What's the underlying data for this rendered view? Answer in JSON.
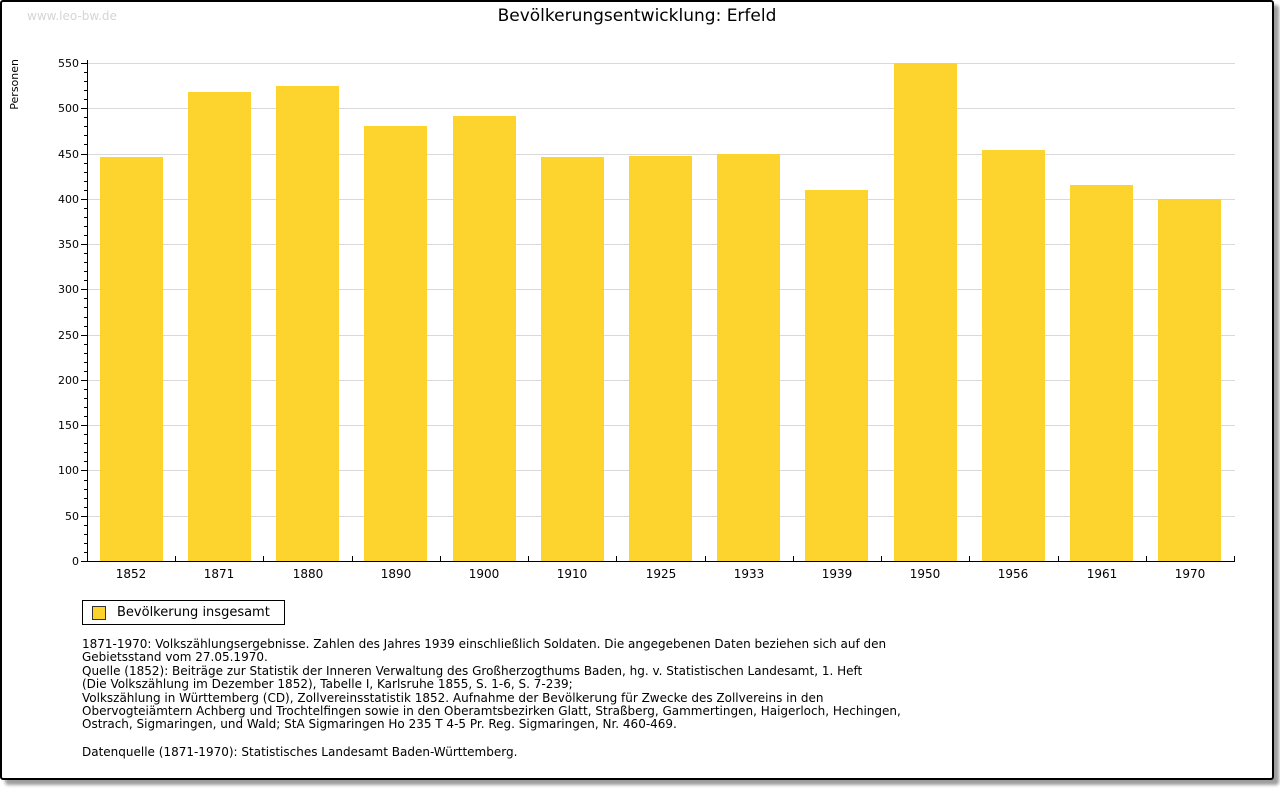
{
  "watermark": "www.leo-bw.de",
  "title": "Bevölkerungsentwicklung: Erfeld",
  "chart_data": {
    "type": "bar",
    "title": "Bevölkerungsentwicklung: Erfeld",
    "categories": [
      "1852",
      "1871",
      "1880",
      "1890",
      "1900",
      "1910",
      "1925",
      "1933",
      "1939",
      "1950",
      "1956",
      "1961",
      "1970"
    ],
    "values": [
      446,
      518,
      525,
      480,
      491,
      446,
      447,
      450,
      410,
      550,
      454,
      415,
      400
    ],
    "series_name": "Bevölkerung insgesamt",
    "xlabel": "",
    "ylabel": "Personen",
    "ylim": [
      0,
      550
    ],
    "y_tick_step": 50,
    "y_minor_tick_step": 10,
    "grid": "horizontal",
    "legend_position": "bottom-left",
    "bar_color": "#fcd42d"
  },
  "legend": {
    "label": "Bevölkerung insgesamt",
    "swatch_color": "#fcd42d"
  },
  "colors": {
    "bar": "#fcd42d",
    "grid": "#d9d9d9",
    "axis": "#000000",
    "watermark": "#d5d5d5"
  },
  "footnotes": {
    "lines": [
      "1871-1970: Volkszählungsergebnisse. Zahlen des Jahres 1939 einschließlich Soldaten. Die angegebenen Daten beziehen sich auf den",
      "Gebietsstand vom 27.05.1970.",
      "Quelle (1852): Beiträge zur Statistik der Inneren Verwaltung des Großherzogthums Baden, hg. v. Statistischen Landesamt, 1. Heft",
      "(Die Volkszählung im Dezember 1852), Tabelle I, Karlsruhe 1855, S. 1-6, S. 7-239;",
      "Volkszählung in Württemberg (CD), Zollvereinsstatistik 1852. Aufnahme der Bevölkerung für Zwecke des Zollvereins in den",
      "Obervogteiämtern Achberg und Trochtelfingen sowie in den Oberamtsbezirken Glatt, Straßberg, Gammertingen, Haigerloch, Hechingen,",
      "Ostrach, Sigmaringen, und Wald; StA Sigmaringen Ho 235 T 4-5 Pr. Reg. Sigmaringen, Nr. 460-469."
    ],
    "datasource": "Datenquelle (1871-1970): Statistisches Landesamt Baden-Württemberg."
  }
}
